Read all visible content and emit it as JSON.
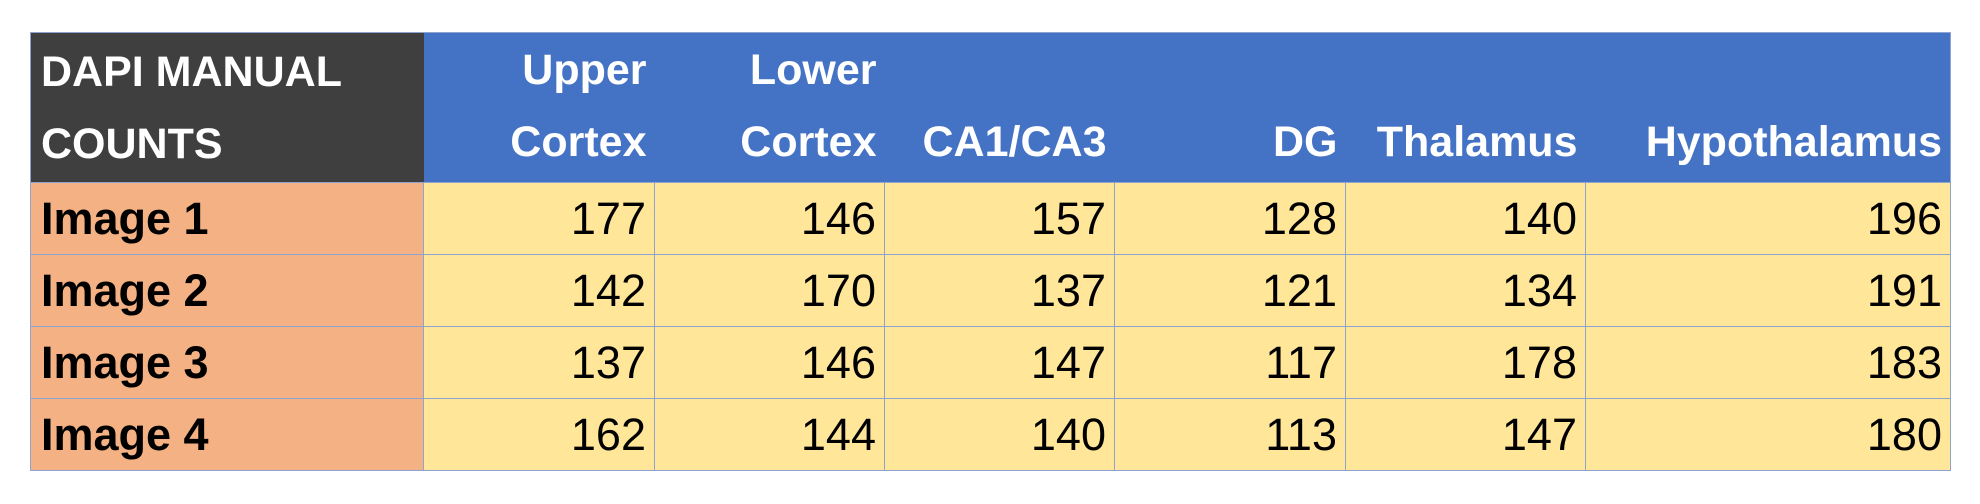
{
  "table": {
    "corner_label_line1": "DAPI MANUAL",
    "corner_label_line2": "COUNTS",
    "columns": [
      {
        "line1": "Upper",
        "line2": "Cortex"
      },
      {
        "line1": "Lower",
        "line2": "Cortex"
      },
      {
        "line1": "",
        "line2": "CA1/CA3"
      },
      {
        "line1": "",
        "line2": "DG"
      },
      {
        "line1": "",
        "line2": "Thalamus"
      },
      {
        "line1": "",
        "line2": "Hypothalamus"
      }
    ],
    "rows": [
      {
        "label": "Image 1",
        "values": [
          "177",
          "146",
          "157",
          "128",
          "140",
          "196"
        ]
      },
      {
        "label": "Image 2",
        "values": [
          "142",
          "170",
          "137",
          "121",
          "134",
          "191"
        ]
      },
      {
        "label": "Image 3",
        "values": [
          "137",
          "146",
          "147",
          "117",
          "178",
          "183"
        ]
      },
      {
        "label": "Image 4",
        "values": [
          "162",
          "144",
          "140",
          "113",
          "147",
          "180"
        ]
      }
    ],
    "colors": {
      "corner_bg": "#3f3f3f",
      "header_bg": "#4472c4",
      "row_label_bg": "#f4b183",
      "cell_bg": "#ffe699",
      "grid": "#8ea3cf"
    }
  }
}
